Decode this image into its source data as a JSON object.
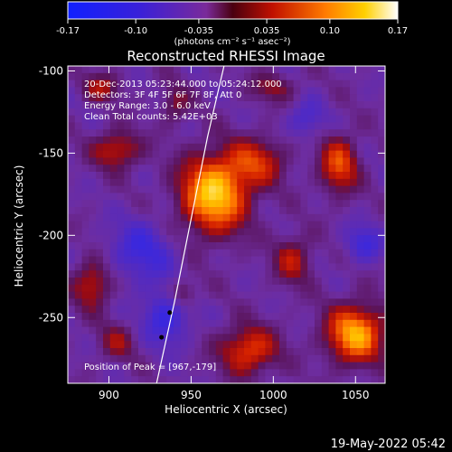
{
  "chart_data": {
    "type": "heatmap",
    "title": "Reconstructed RHESSI Image",
    "xlabel": "Heliocentric X (arcsec)",
    "ylabel": "Heliocentric Y (arcsec)",
    "xlim": [
      875,
      1068
    ],
    "ylim": [
      -290,
      -97
    ],
    "xticks": [
      "900",
      "950",
      "1000",
      "1050"
    ],
    "yticks": [
      "-100",
      "-150",
      "-200",
      "-250"
    ],
    "colorbar": {
      "colormap": "blue-purple-red-yellow-white",
      "range": [
        -0.17,
        0.17
      ],
      "ticks": [
        "-0.17",
        "-0.10",
        "-0.035",
        "0.035",
        "0.10",
        "0.17"
      ],
      "unit_label": "(photons cm⁻² s⁻¹ asec⁻²)"
    },
    "annotations": [
      "20-Dec-2013 05:23:44.000 to 05:24:12.000",
      "Detectors: 3F 4F 5F 6F 7F 8F, Att 0",
      "Energy Range: 3.0 - 6.0 keV",
      "Clean     Total counts: 5.42E+03",
      "Position of Peak = [967,-179]"
    ],
    "peak": {
      "x": 967,
      "y": -179
    },
    "limb_curve": [
      [
        929,
        -290
      ],
      [
        940,
        -240
      ],
      [
        950,
        -190
      ],
      [
        960,
        -140
      ],
      [
        970,
        -97
      ]
    ],
    "markers": [
      [
        937,
        -247
      ],
      [
        932,
        -262
      ]
    ],
    "blobs": [
      {
        "x": 964,
        "y": -175,
        "sx": 14,
        "sy": 16,
        "amp": 0.17
      },
      {
        "x": 990,
        "y": -155,
        "sx": 12,
        "sy": 10,
        "amp": 0.08
      },
      {
        "x": 905,
        "y": -148,
        "sx": 10,
        "sy": 8,
        "amp": 0.08
      },
      {
        "x": 1040,
        "y": -157,
        "sx": 8,
        "sy": 12,
        "amp": 0.1
      },
      {
        "x": 1050,
        "y": -260,
        "sx": 12,
        "sy": 12,
        "amp": 0.15
      },
      {
        "x": 985,
        "y": -270,
        "sx": 12,
        "sy": 10,
        "amp": 0.1
      },
      {
        "x": 945,
        "y": -235,
        "sx": 6,
        "sy": 6,
        "amp": 0.06
      },
      {
        "x": 1012,
        "y": -215,
        "sx": 8,
        "sy": 10,
        "amp": 0.07
      },
      {
        "x": 890,
        "y": -230,
        "sx": 8,
        "sy": 10,
        "amp": 0.08
      },
      {
        "x": 895,
        "y": -110,
        "sx": 8,
        "sy": 6,
        "amp": 0.06
      },
      {
        "x": 940,
        "y": -120,
        "sx": 6,
        "sy": 8,
        "amp": 0.05
      },
      {
        "x": 920,
        "y": -210,
        "sx": 14,
        "sy": 14,
        "amp": -0.06
      },
      {
        "x": 935,
        "y": -250,
        "sx": 10,
        "sy": 12,
        "amp": -0.07
      },
      {
        "x": 1055,
        "y": -205,
        "sx": 8,
        "sy": 8,
        "amp": -0.06
      },
      {
        "x": 1020,
        "y": -130,
        "sx": 8,
        "sy": 8,
        "amp": -0.05
      },
      {
        "x": 905,
        "y": -265,
        "sx": 8,
        "sy": 8,
        "amp": 0.05
      },
      {
        "x": 1000,
        "y": -110,
        "sx": 10,
        "sy": 6,
        "amp": 0.05
      }
    ]
  },
  "footer": {
    "timestamp": "19-May-2022 05:42"
  }
}
